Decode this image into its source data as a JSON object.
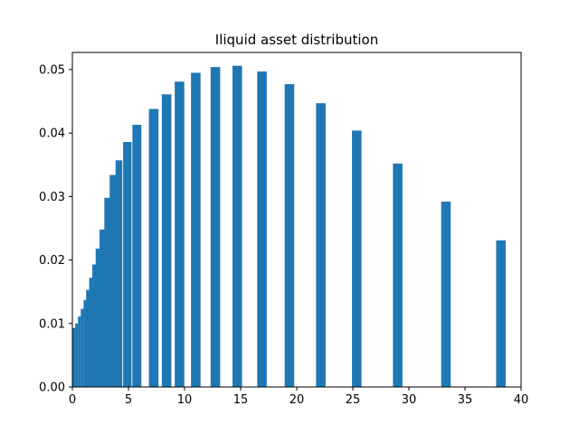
{
  "chart_data": {
    "type": "bar",
    "title": "Iliquid asset distribution",
    "xlabel": "",
    "ylabel": "",
    "xlim": [
      0,
      40
    ],
    "ylim": [
      0,
      0.0527
    ],
    "xticks": [
      0,
      5,
      10,
      15,
      20,
      25,
      30,
      35,
      40
    ],
    "xtick_labels": [
      "0",
      "5",
      "10",
      "15",
      "20",
      "25",
      "30",
      "35",
      "40"
    ],
    "yticks": [
      0,
      0.01,
      0.02,
      0.03,
      0.04,
      0.05
    ],
    "ytick_labels": [
      "0.00",
      "0.01",
      "0.02",
      "0.03",
      "0.04",
      "0.05"
    ],
    "grid": false,
    "bar_color": "#1f77b4",
    "bars": [
      {
        "x": 0.0,
        "width": 0.15,
        "value": 0.009
      },
      {
        "x": 0.125,
        "width": 0.25,
        "value": 0.0093
      },
      {
        "x": 0.375,
        "width": 0.25,
        "value": 0.01
      },
      {
        "x": 0.625,
        "width": 0.25,
        "value": 0.0111
      },
      {
        "x": 0.875,
        "width": 0.25,
        "value": 0.0123
      },
      {
        "x": 1.125,
        "width": 0.25,
        "value": 0.0137
      },
      {
        "x": 1.375,
        "width": 0.3,
        "value": 0.0153
      },
      {
        "x": 1.65,
        "width": 0.3,
        "value": 0.0172
      },
      {
        "x": 1.95,
        "width": 0.35,
        "value": 0.0193
      },
      {
        "x": 2.275,
        "width": 0.4,
        "value": 0.0218
      },
      {
        "x": 2.65,
        "width": 0.45,
        "value": 0.0248
      },
      {
        "x": 3.1,
        "width": 0.5,
        "value": 0.0298
      },
      {
        "x": 3.6,
        "width": 0.55,
        "value": 0.0334
      },
      {
        "x": 4.15,
        "width": 0.6,
        "value": 0.0357
      },
      {
        "x": 4.9,
        "width": 0.75,
        "value": 0.0386
      },
      {
        "x": 5.75,
        "width": 0.8,
        "value": 0.0413
      },
      {
        "x": 7.25,
        "width": 0.85,
        "value": 0.0438
      },
      {
        "x": 8.4,
        "width": 0.85,
        "value": 0.0461
      },
      {
        "x": 9.55,
        "width": 0.85,
        "value": 0.0481
      },
      {
        "x": 11.0,
        "width": 0.85,
        "value": 0.0495
      },
      {
        "x": 12.75,
        "width": 0.85,
        "value": 0.0504
      },
      {
        "x": 14.7,
        "width": 0.85,
        "value": 0.0506
      },
      {
        "x": 16.9,
        "width": 0.85,
        "value": 0.0497
      },
      {
        "x": 19.35,
        "width": 0.85,
        "value": 0.0477
      },
      {
        "x": 22.15,
        "width": 0.85,
        "value": 0.0447
      },
      {
        "x": 25.35,
        "width": 0.85,
        "value": 0.0404
      },
      {
        "x": 29.0,
        "width": 0.85,
        "value": 0.0352
      },
      {
        "x": 33.3,
        "width": 0.85,
        "value": 0.0292
      },
      {
        "x": 38.2,
        "width": 0.85,
        "value": 0.0231
      }
    ]
  }
}
